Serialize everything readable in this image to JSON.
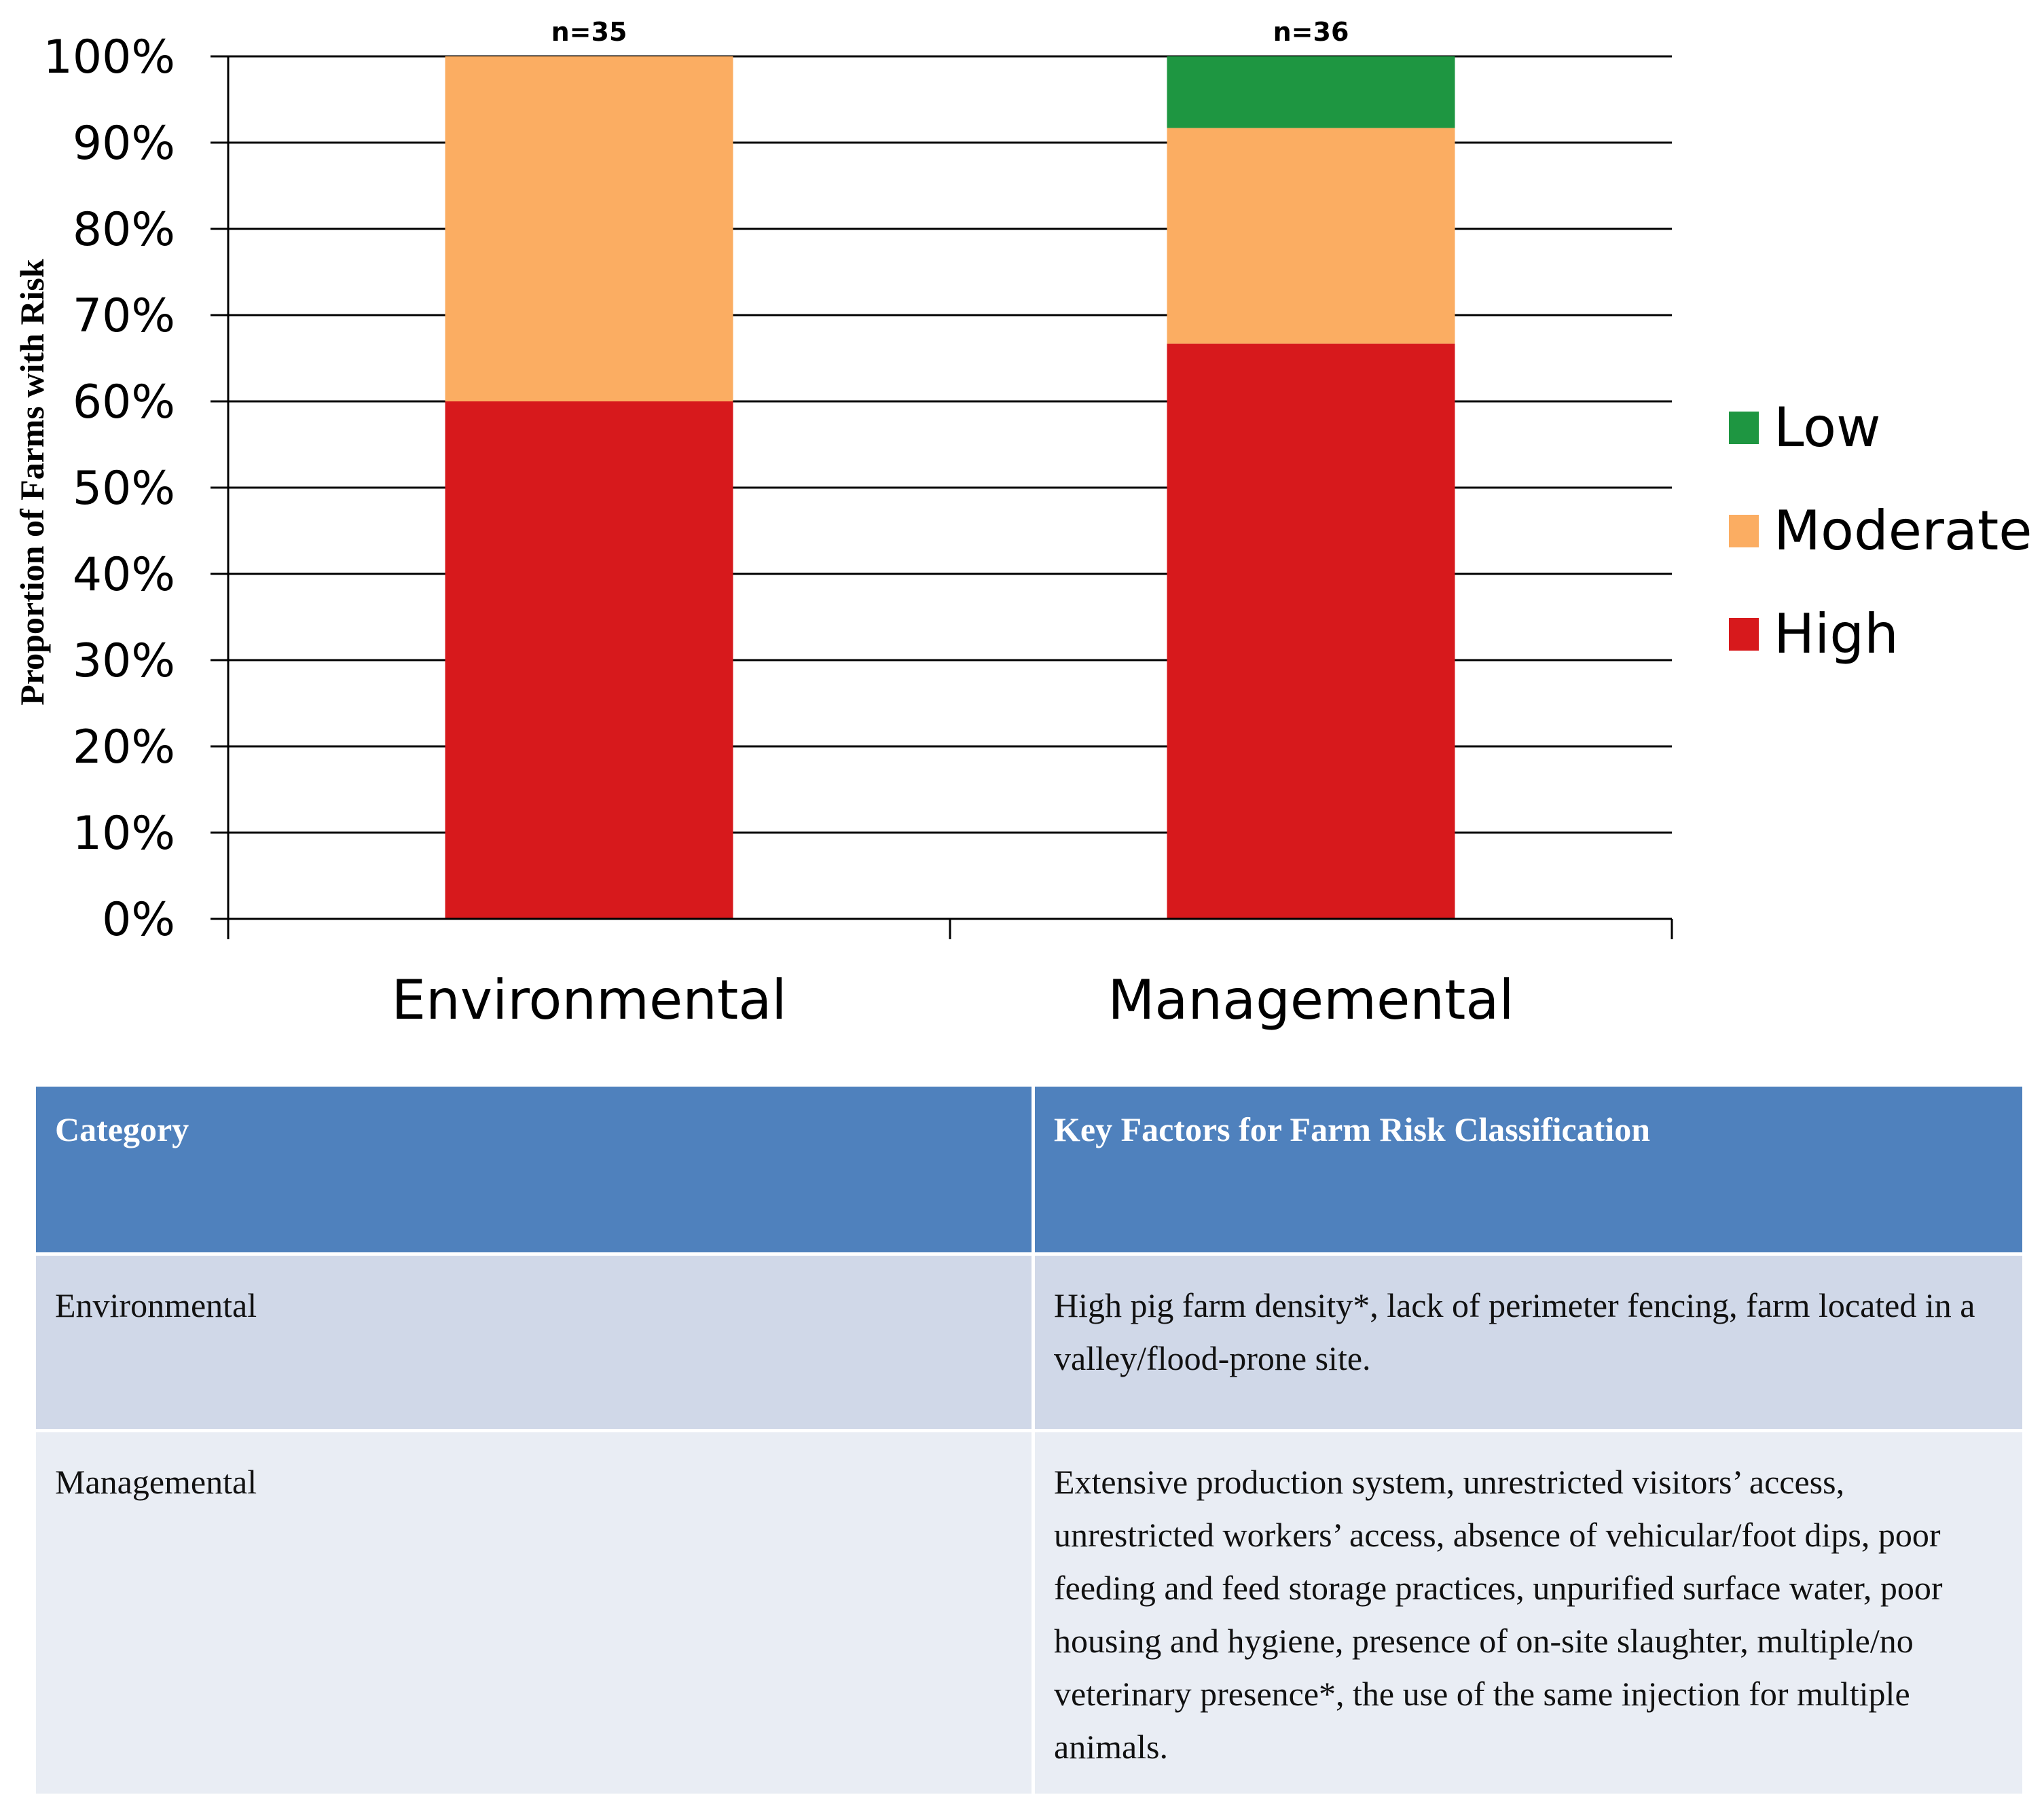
{
  "chart_data": {
    "type": "bar",
    "stacked": true,
    "categories": [
      "Environmental",
      "Managemental"
    ],
    "sample_sizes": [
      "n=35",
      "n=36"
    ],
    "series": [
      {
        "name": "High",
        "color": "#d7191c",
        "values": [
          60,
          66.7
        ]
      },
      {
        "name": "Moderate",
        "color": "#fbad62",
        "values": [
          40,
          25
        ]
      },
      {
        "name": "Low",
        "color": "#1e9641",
        "values": [
          0,
          8.3
        ]
      }
    ],
    "ylabel": "Proportion of Farms with Risk",
    "ylim": [
      0,
      100
    ],
    "yticks": [
      "0%",
      "10%",
      "20%",
      "30%",
      "40%",
      "50%",
      "60%",
      "70%",
      "80%",
      "90%",
      "100%"
    ],
    "legend": [
      "Low",
      "Moderate",
      "High"
    ],
    "legend_position": "right",
    "grid": true
  },
  "table": {
    "headers": [
      "Category",
      "Key Factors  for Farm Risk Classification"
    ],
    "rows": [
      {
        "category": "Environmental",
        "factors": "High pig farm density*, lack of perimeter fencing, farm located in a valley/flood-prone site."
      },
      {
        "category": "Managemental",
        "factors": "Extensive production system, unrestricted visitors’ access, unrestricted workers’ access, absence of vehicular/foot dips, poor feeding and feed storage practices, unpurified surface water, poor housing and hygiene, presence of on-site slaughter, multiple/no veterinary presence*, the use of the same injection for multiple animals."
      }
    ]
  }
}
